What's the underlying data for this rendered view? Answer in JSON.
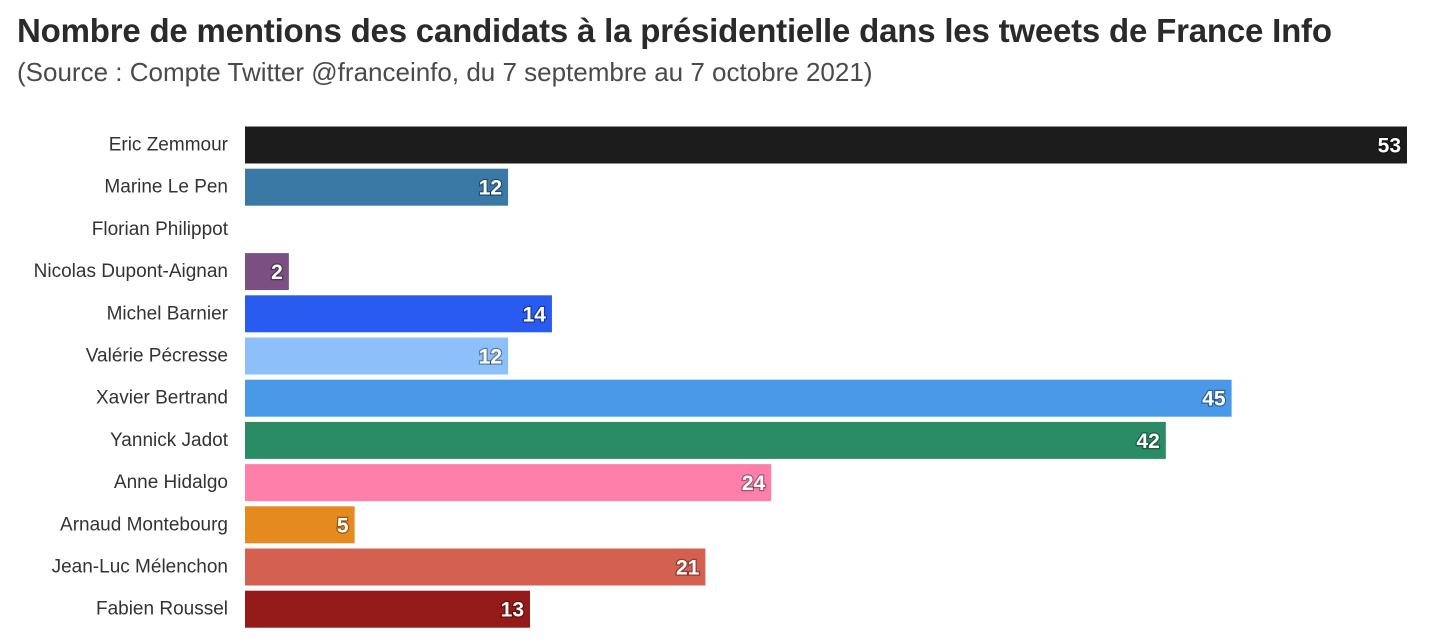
{
  "chart_data": {
    "type": "bar",
    "orientation": "horizontal",
    "title": "Nombre de mentions des candidats à la présidentielle dans les tweets de France Info",
    "subtitle": "(Source : Compte Twitter @franceinfo, du 7 septembre au 7 octobre 2021)",
    "xlim": [
      0,
      53
    ],
    "grid": false,
    "legend": "none",
    "categories": [
      "Eric Zemmour",
      "Marine Le Pen",
      "Florian Philippot",
      "Nicolas Dupont-Aignan",
      "Michel Barnier",
      "Valérie Pécresse",
      "Xavier Bertrand",
      "Yannick Jadot",
      "Anne Hidalgo",
      "Arnaud Montebourg",
      "Jean-Luc Mélenchon",
      "Fabien Roussel"
    ],
    "values": [
      53,
      12,
      0,
      2,
      14,
      12,
      45,
      42,
      24,
      5,
      21,
      13
    ],
    "data_labels": [
      "53",
      "12",
      "",
      "2",
      "14",
      "12",
      "45",
      "42",
      "24",
      "5",
      "21",
      "13"
    ],
    "colors": [
      "#1c1c1c",
      "#3a78a6",
      "#2d4f86",
      "#7b4f80",
      "#2a5bf0",
      "#8dbffa",
      "#4a98e8",
      "#2a8c65",
      "#ff7fab",
      "#e48a1e",
      "#d46050",
      "#951a1a"
    ]
  }
}
